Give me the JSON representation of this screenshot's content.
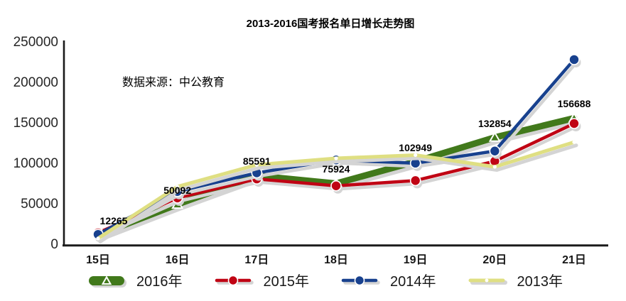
{
  "title": "2013-2016国考报名单日增长走势图",
  "annotation": {
    "source_note": "数据来源：中公教育"
  },
  "chart_data": {
    "type": "line",
    "title": "2013-2016国考报名单日增长走势图",
    "categories": [
      "15日",
      "16日",
      "17日",
      "18日",
      "19日",
      "20日",
      "21日"
    ],
    "series": [
      {
        "name": "2016年",
        "color": "#41791b",
        "line_width": 9,
        "marker": "triangle-open",
        "values": [
          12265,
          50092,
          85591,
          75924,
          102949,
          132854,
          156688
        ],
        "labeled": true,
        "data_labels": [
          "12265",
          "50092",
          "85591",
          "75924",
          "102949",
          "132854",
          "156688"
        ]
      },
      {
        "name": "2015年",
        "color": "#c00414",
        "line_width": 4.5,
        "marker": "circle",
        "values": [
          15000,
          58000,
          81500,
          73000,
          79500,
          103500,
          150000
        ],
        "labeled": false
      },
      {
        "name": "2014年",
        "color": "#18418e",
        "line_width": 4.5,
        "marker": "circle",
        "values": [
          13000,
          66000,
          89000,
          105000,
          101000,
          116000,
          229000
        ],
        "labeled": false
      },
      {
        "name": "2013年",
        "color": "#dfdf82",
        "line_width": 5,
        "marker": "white-dot",
        "values": [
          8000,
          72000,
          99000,
          107000,
          111000,
          96500,
          127000
        ],
        "labeled": false
      }
    ],
    "y_ticks": [
      0,
      50000,
      100000,
      150000,
      200000,
      250000
    ],
    "ylim": [
      0,
      250000
    ],
    "xlabel": "",
    "ylabel": "",
    "grid": false,
    "legend_position": "bottom",
    "shadow_color": "#d4d4d4",
    "axis_color": "#1a1a1a"
  }
}
